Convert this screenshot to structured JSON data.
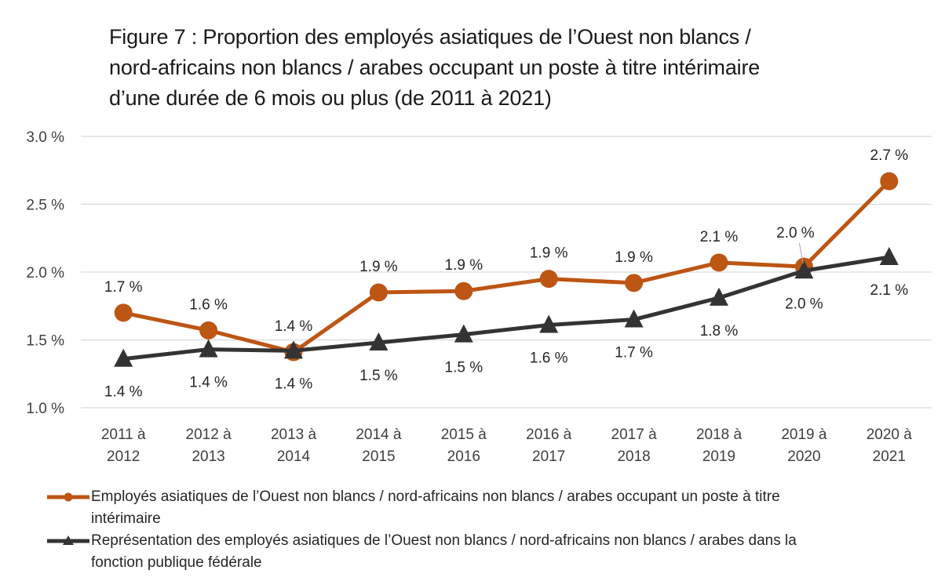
{
  "title_lines": [
    "Figure 7 : Proportion des employés asiatiques de l’Ouest non blancs /",
    "nord-africains non blancs / arabes occupant un poste à titre intérimaire",
    "d’une durée de 6 mois ou plus (de 2011 à 2021)"
  ],
  "chart_data": {
    "type": "line",
    "title": "Figure 7 : Proportion des employés asiatiques de l’Ouest non blancs / nord-africains non blancs / arabes occupant un poste à titre intérimaire d’une durée de 6 mois ou plus (de 2011 à 2021)",
    "xlabel": "",
    "ylabel": "",
    "ylim": [
      1.0,
      3.0
    ],
    "yticks": [
      1.0,
      1.5,
      2.0,
      2.5,
      3.0
    ],
    "ytick_labels": [
      "1.0 %",
      "1.5 %",
      "2.0 %",
      "2.5 %",
      "3.0 %"
    ],
    "grid": true,
    "legend_position": "bottom",
    "categories": [
      [
        "2011 à",
        "2012"
      ],
      [
        "2012 à",
        "2013"
      ],
      [
        "2013 à",
        "2014"
      ],
      [
        "2014 à",
        "2015"
      ],
      [
        "2015 à",
        "2016"
      ],
      [
        "2016 à",
        "2017"
      ],
      [
        "2017 à",
        "2018"
      ],
      [
        "2018 à",
        "2019"
      ],
      [
        "2019 à",
        "2020"
      ],
      [
        "2020 à",
        "2021"
      ]
    ],
    "series": [
      {
        "name": "Employés asiatiques de l’Ouest non blancs / nord-africains non blancs / arabes occupant un poste à titre intérimaire",
        "color": "#BD5513",
        "marker": "circle",
        "values": [
          1.7,
          1.57,
          1.41,
          1.85,
          1.86,
          1.95,
          1.92,
          2.07,
          2.04,
          2.67
        ],
        "labels": [
          "1.7 %",
          "1.6 %",
          "1.4 %",
          "1.9 %",
          "1.9 %",
          "1.9 %",
          "1.9 %",
          "2.1 %",
          "2.0 %",
          "2.7 %"
        ],
        "label_position": "above"
      },
      {
        "name": "Représentation des employés asiatiques de l’Ouest non blancs / nord-africains non blancs / arabes dans la fonction publique fédérale",
        "color": "#333333",
        "marker": "triangle",
        "values": [
          1.36,
          1.43,
          1.42,
          1.48,
          1.54,
          1.61,
          1.65,
          1.81,
          2.01,
          2.11
        ],
        "labels": [
          "1.4 %",
          "1.4 %",
          "1.4 %",
          "1.5 %",
          "1.5 %",
          "1.6 %",
          "1.7 %",
          "1.8 %",
          "2.0 %",
          "2.1 %"
        ],
        "label_position": "below"
      }
    ]
  },
  "legend": [
    {
      "line1": "Employés asiatiques de l’Ouest non blancs / nord-africains non blancs / arabes occupant un poste à titre",
      "line2": "intérimaire",
      "color": "#BD5513",
      "marker": "circle"
    },
    {
      "line1": "Représentation des employés asiatiques de l’Ouest non blancs / nord-africains non blancs / arabes dans la",
      "line2": "fonction publique fédérale",
      "color": "#333333",
      "marker": "triangle"
    }
  ]
}
